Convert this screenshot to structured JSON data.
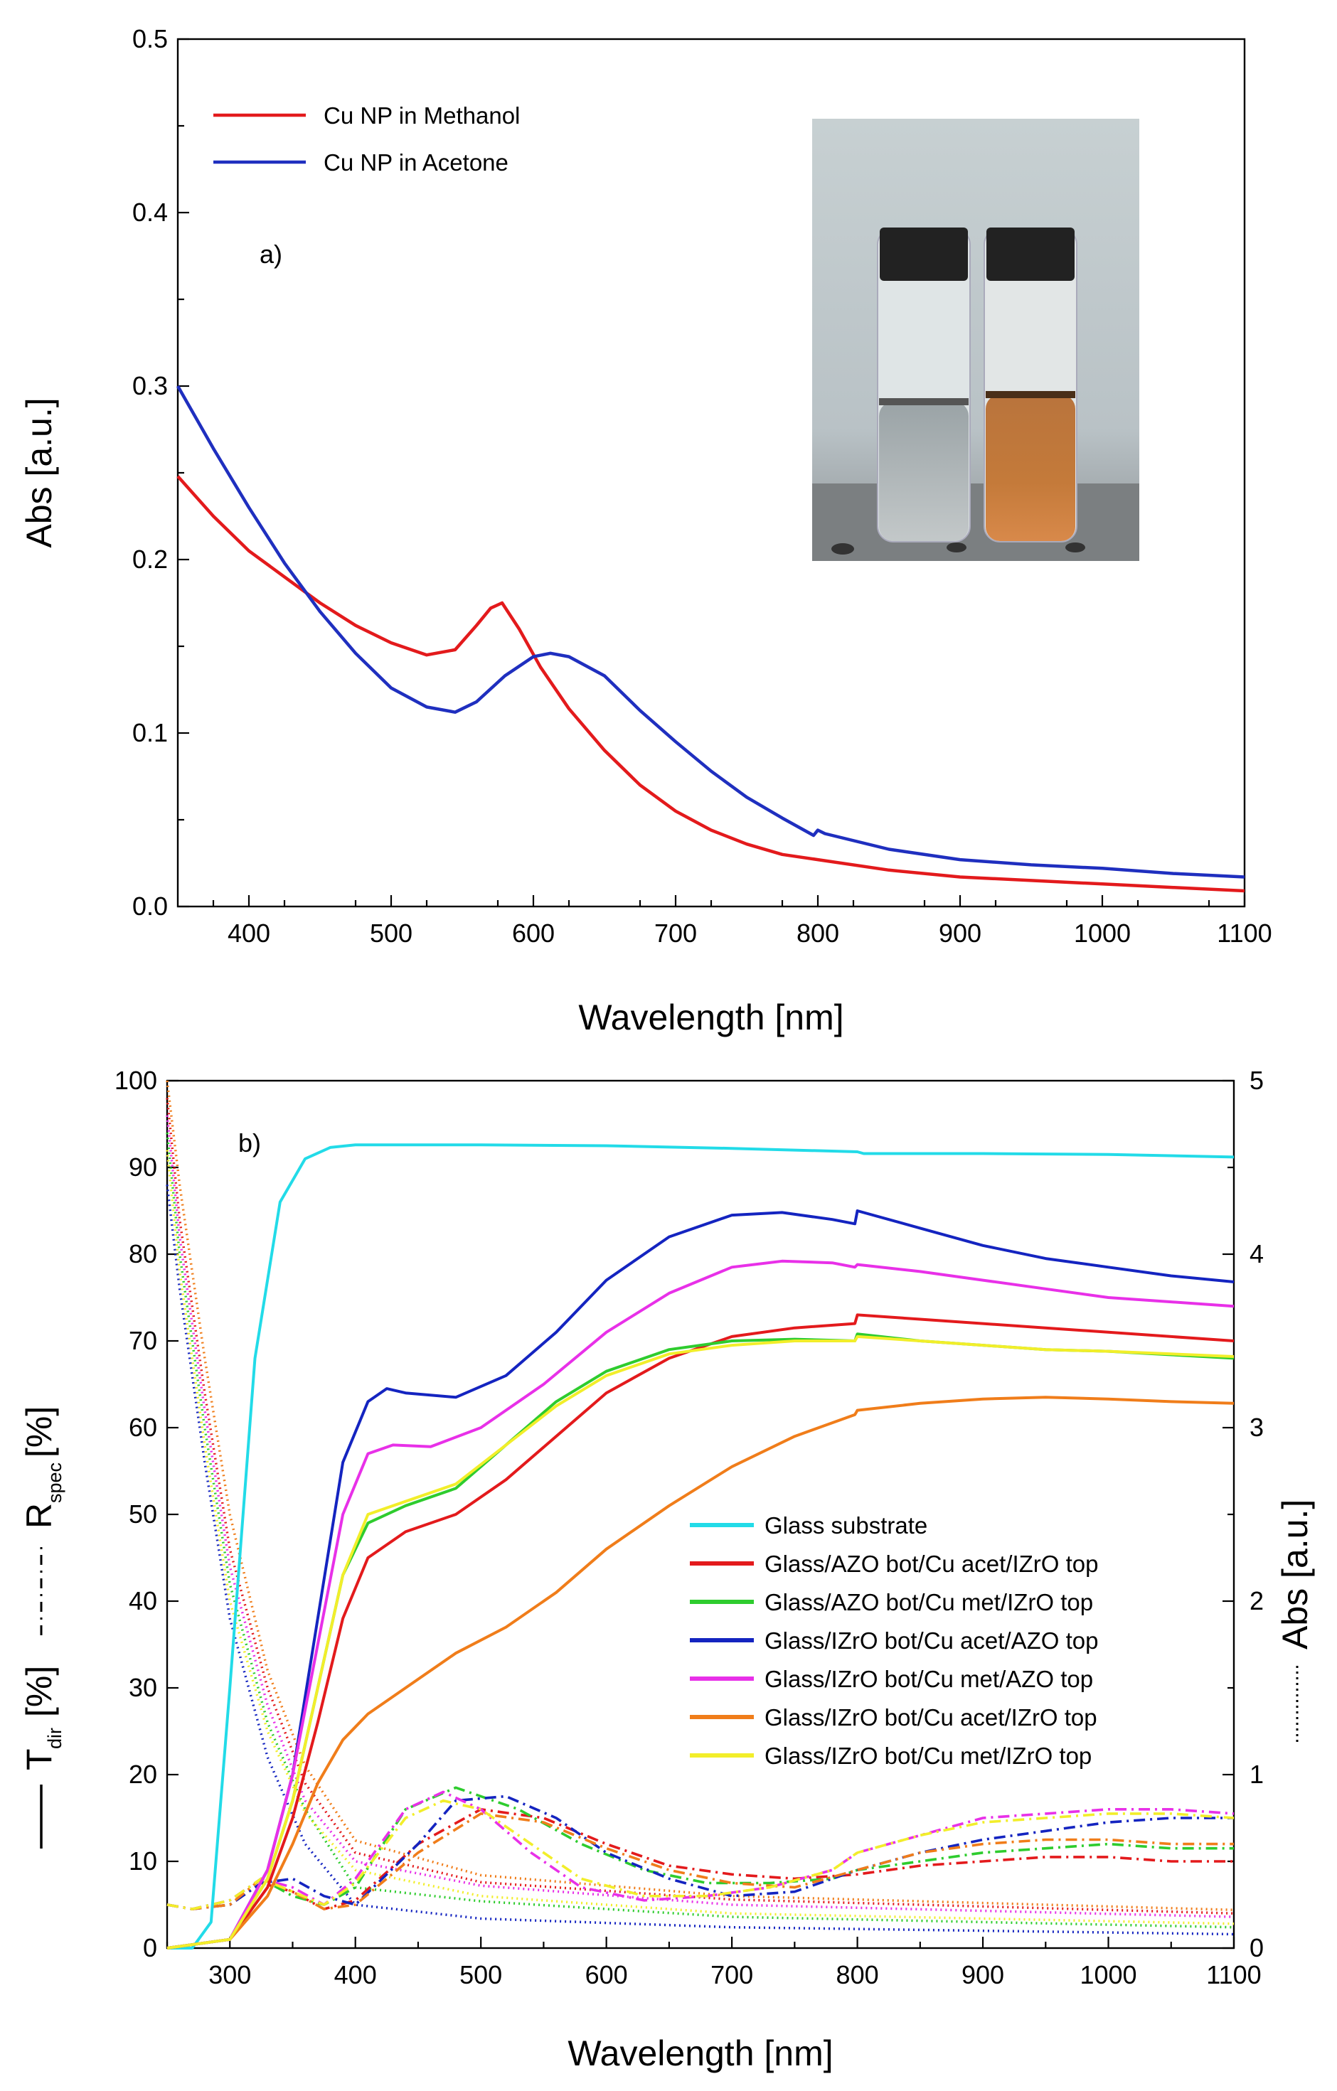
{
  "colors": {
    "red": "#e31a1c",
    "blue": "#1f2fbf",
    "cyan": "#22dbe8",
    "green": "#2ecc2e",
    "darkblue": "#1424c0",
    "magenta": "#e830e8",
    "orange": "#f07d1a",
    "yellow": "#f2ee2a",
    "black": "#000000"
  },
  "inset_photo": {
    "description": "vials",
    "icon": "vial-photo"
  },
  "chart_data": [
    {
      "type": "line",
      "panel": "a)",
      "xlabel": "Wavelength [nm]",
      "ylabel": "Abs [a.u.]",
      "xlim": [
        350,
        1100
      ],
      "ylim": [
        0.0,
        0.5
      ],
      "xticks": [
        400,
        500,
        600,
        700,
        800,
        900,
        1000,
        1100
      ],
      "yticks": [
        0.0,
        0.1,
        0.2,
        0.3,
        0.4,
        0.5
      ],
      "ytick_labels": [
        "0.0",
        "0.1",
        "0.2",
        "0.3",
        "0.4",
        "0.5"
      ],
      "legend_position": "top-left",
      "series": [
        {
          "name": "Cu NP in Methanol",
          "color": "#e31a1c",
          "x": [
            350,
            375,
            400,
            425,
            450,
            475,
            500,
            525,
            545,
            560,
            570,
            578,
            590,
            605,
            625,
            650,
            675,
            700,
            725,
            750,
            775,
            800,
            850,
            900,
            950,
            1000,
            1050,
            1100
          ],
          "y": [
            0.248,
            0.225,
            0.205,
            0.19,
            0.175,
            0.162,
            0.152,
            0.145,
            0.148,
            0.162,
            0.172,
            0.175,
            0.16,
            0.138,
            0.114,
            0.09,
            0.07,
            0.055,
            0.044,
            0.036,
            0.03,
            0.027,
            0.021,
            0.017,
            0.015,
            0.013,
            0.011,
            0.009
          ]
        },
        {
          "name": "Cu NP in Acetone",
          "color": "#1f2fbf",
          "x": [
            350,
            375,
            400,
            425,
            450,
            475,
            500,
            525,
            545,
            560,
            580,
            600,
            612,
            625,
            650,
            675,
            700,
            725,
            750,
            775,
            797,
            800,
            805,
            850,
            900,
            950,
            1000,
            1050,
            1100
          ],
          "y": [
            0.3,
            0.264,
            0.23,
            0.198,
            0.17,
            0.146,
            0.126,
            0.115,
            0.112,
            0.118,
            0.133,
            0.144,
            0.146,
            0.144,
            0.133,
            0.113,
            0.095,
            0.078,
            0.063,
            0.051,
            0.041,
            0.044,
            0.042,
            0.033,
            0.027,
            0.024,
            0.022,
            0.019,
            0.017
          ]
        }
      ]
    },
    {
      "type": "line",
      "panel": "b)",
      "xlabel": "Wavelength [nm]",
      "ylabel_left": {
        "t": "T",
        "t_sub": "dir",
        "t_unit": " [%]",
        "r": "R",
        "r_sub": "spec",
        "r_unit": " [%]"
      },
      "ylabel_right": "Abs [a.u.]",
      "xlim": [
        250,
        1100
      ],
      "ylim_left": [
        0,
        100
      ],
      "ylim_right": [
        0,
        5
      ],
      "xticks": [
        300,
        400,
        500,
        600,
        700,
        800,
        900,
        1000,
        1100
      ],
      "yticks_left": [
        0,
        10,
        20,
        30,
        40,
        50,
        60,
        70,
        80,
        90,
        100
      ],
      "yticks_right": [
        0,
        1,
        2,
        3,
        4,
        5
      ],
      "legend_position": "center-right",
      "transmittance": [
        {
          "name": "Glass substrate",
          "color": "#22dbe8",
          "x": [
            250,
            270,
            285,
            300,
            320,
            340,
            360,
            380,
            400,
            500,
            600,
            700,
            800,
            805,
            900,
            1000,
            1100
          ],
          "y": [
            0,
            0,
            3,
            30,
            68,
            86,
            91,
            92.3,
            92.6,
            92.6,
            92.5,
            92.2,
            91.8,
            91.6,
            91.6,
            91.5,
            91.2
          ]
        },
        {
          "name": "Glass/AZO bot/Cu acet/IZrO top",
          "color": "#e31a1c",
          "x": [
            250,
            300,
            330,
            350,
            370,
            390,
            410,
            440,
            480,
            520,
            560,
            600,
            650,
            700,
            750,
            798,
            800,
            850,
            900,
            950,
            1000,
            1050,
            1100
          ],
          "y": [
            0,
            1,
            7,
            15,
            26,
            38,
            45,
            48,
            50,
            54,
            59,
            64,
            68,
            70.5,
            71.5,
            72,
            73,
            72.5,
            72,
            71.5,
            71,
            70.5,
            70
          ]
        },
        {
          "name": "Glass/AZO bot/Cu met/IZrO top",
          "color": "#2ecc2e",
          "x": [
            250,
            300,
            330,
            350,
            370,
            390,
            410,
            440,
            480,
            520,
            560,
            600,
            650,
            700,
            750,
            798,
            800,
            850,
            900,
            950,
            1000,
            1050,
            1100
          ],
          "y": [
            0,
            1,
            8,
            17,
            30,
            43,
            49,
            51,
            53,
            58,
            63,
            66.5,
            69,
            70,
            70.2,
            70,
            70.8,
            70,
            69.5,
            69,
            68.8,
            68.4,
            68
          ]
        },
        {
          "name": "Glass/IZrO bot/Cu acet/AZO top",
          "color": "#1424c0",
          "x": [
            250,
            300,
            330,
            350,
            370,
            390,
            410,
            425,
            440,
            480,
            520,
            560,
            600,
            650,
            700,
            740,
            780,
            798,
            800,
            850,
            900,
            950,
            1000,
            1050,
            1100
          ],
          "y": [
            0,
            1,
            9,
            20,
            38,
            56,
            63,
            64.5,
            64,
            63.5,
            66,
            71,
            77,
            82,
            84.5,
            84.8,
            84,
            83.5,
            85,
            83,
            81,
            79.5,
            78.5,
            77.5,
            76.8
          ]
        },
        {
          "name": "Glass/IZrO bot/Cu met/AZO top",
          "color": "#e830e8",
          "x": [
            250,
            300,
            330,
            350,
            370,
            390,
            410,
            430,
            460,
            500,
            550,
            600,
            650,
            700,
            740,
            780,
            798,
            800,
            850,
            900,
            950,
            1000,
            1050,
            1100
          ],
          "y": [
            0,
            1,
            9,
            20,
            35,
            50,
            57,
            58,
            57.8,
            60,
            65,
            71,
            75.5,
            78.5,
            79.2,
            79,
            78.5,
            78.8,
            78,
            77,
            76,
            75,
            74.5,
            74
          ]
        },
        {
          "name": "Glass/IZrO bot/Cu acet/IZrO top",
          "color": "#f07d1a",
          "x": [
            250,
            300,
            330,
            350,
            370,
            390,
            410,
            440,
            480,
            520,
            560,
            600,
            650,
            700,
            750,
            798,
            800,
            850,
            900,
            950,
            1000,
            1050,
            1100
          ],
          "y": [
            0,
            1,
            6,
            12,
            19,
            24,
            27,
            30,
            34,
            37,
            41,
            46,
            51,
            55.5,
            59,
            61.5,
            62,
            62.8,
            63.3,
            63.5,
            63.3,
            63,
            62.8
          ]
        },
        {
          "name": "Glass/IZrO bot/Cu met/IZrO top",
          "color": "#f2ee2a",
          "x": [
            250,
            300,
            330,
            350,
            370,
            390,
            410,
            440,
            480,
            520,
            560,
            600,
            650,
            700,
            750,
            798,
            800,
            850,
            900,
            950,
            1000,
            1050,
            1100
          ],
          "y": [
            0,
            1,
            8,
            17,
            30,
            43,
            50,
            51.5,
            53.5,
            58,
            62.5,
            66,
            68.5,
            69.5,
            70,
            70,
            70.5,
            70,
            69.5,
            69,
            68.8,
            68.5,
            68.2
          ]
        }
      ],
      "reflectance": [
        {
          "name": "Glass/AZO bot/Cu acet/IZrO top",
          "color": "#e31a1c",
          "x": [
            250,
            270,
            300,
            325,
            350,
            375,
            400,
            450,
            500,
            550,
            600,
            650,
            700,
            750,
            800,
            850,
            900,
            950,
            1000,
            1050,
            1100
          ],
          "y": [
            5,
            4.5,
            5,
            7.5,
            6.5,
            4.5,
            5.5,
            12,
            16,
            15,
            12,
            9.5,
            8.5,
            8,
            8.5,
            9.5,
            10,
            10.5,
            10.5,
            10,
            10
          ]
        },
        {
          "name": "Glass/AZO bot/Cu met/IZrO top",
          "color": "#2ecc2e",
          "x": [
            250,
            270,
            300,
            325,
            350,
            375,
            400,
            440,
            480,
            530,
            580,
            630,
            680,
            730,
            780,
            800,
            850,
            900,
            950,
            1000,
            1050,
            1100
          ],
          "y": [
            5,
            4.5,
            5.5,
            8,
            6,
            5,
            7,
            16,
            18.5,
            16,
            12,
            9,
            7.5,
            7.5,
            8,
            9,
            10,
            11,
            11.5,
            12,
            11.5,
            11.5
          ]
        },
        {
          "name": "Glass/IZrO bot/Cu acet/AZO top",
          "color": "#1424c0",
          "x": [
            250,
            270,
            300,
            325,
            350,
            375,
            400,
            450,
            480,
            520,
            560,
            600,
            650,
            700,
            750,
            800,
            850,
            900,
            950,
            1000,
            1050,
            1100
          ],
          "y": [
            5,
            4.5,
            5,
            7.5,
            8,
            6,
            5,
            12,
            17,
            17.5,
            15,
            11,
            8,
            6,
            6.5,
            9,
            11,
            12.5,
            13.5,
            14.5,
            15,
            15
          ]
        },
        {
          "name": "Glass/IZrO bot/Cu met/AZO top",
          "color": "#e830e8",
          "x": [
            250,
            270,
            300,
            325,
            350,
            375,
            400,
            440,
            470,
            500,
            540,
            580,
            630,
            680,
            730,
            780,
            800,
            850,
            900,
            950,
            1000,
            1050,
            1100
          ],
          "y": [
            5,
            4.5,
            5.5,
            8,
            7,
            5,
            8,
            16,
            18,
            16,
            11,
            7,
            5.5,
            6,
            7,
            9,
            11,
            13,
            15,
            15.5,
            16,
            16,
            15.5
          ]
        },
        {
          "name": "Glass/IZrO bot/Cu acet/IZrO top",
          "color": "#f07d1a",
          "x": [
            250,
            270,
            300,
            325,
            350,
            375,
            400,
            450,
            500,
            550,
            600,
            650,
            700,
            750,
            800,
            850,
            900,
            950,
            1000,
            1050,
            1100
          ],
          "y": [
            5,
            4.5,
            5,
            8,
            6.5,
            4.5,
            5,
            11,
            15.5,
            14.5,
            11.5,
            9,
            7.5,
            7,
            9,
            11,
            12,
            12.5,
            12.5,
            12,
            12
          ]
        },
        {
          "name": "Glass/IZrO bot/Cu met/IZrO top",
          "color": "#f2ee2a",
          "x": [
            250,
            270,
            300,
            325,
            350,
            375,
            400,
            440,
            470,
            500,
            540,
            580,
            630,
            680,
            730,
            780,
            800,
            850,
            900,
            950,
            1000,
            1050,
            1100
          ],
          "y": [
            5,
            4.5,
            5.5,
            8,
            6.5,
            5,
            7.5,
            15,
            17,
            16,
            12,
            8,
            6,
            6,
            7,
            9,
            11,
            13,
            14.5,
            15,
            15.5,
            15.5,
            15
          ]
        }
      ],
      "absorbance": [
        {
          "name": "Glass/AZO bot/Cu acet/IZrO top",
          "color": "#e31a1c",
          "x": [
            250,
            260,
            280,
            300,
            330,
            360,
            400,
            500,
            700,
            1100
          ],
          "y": [
            4.9,
            4.2,
            3.2,
            2.3,
            1.5,
            0.95,
            0.55,
            0.38,
            0.28,
            0.2
          ]
        },
        {
          "name": "Glass/AZO bot/Cu met/IZrO top",
          "color": "#2ecc2e",
          "x": [
            250,
            260,
            280,
            300,
            330,
            360,
            400,
            500,
            700,
            1100
          ],
          "y": [
            4.7,
            4.0,
            3.0,
            2.1,
            1.3,
            0.8,
            0.35,
            0.27,
            0.18,
            0.12
          ]
        },
        {
          "name": "Glass/IZrO bot/Cu acet/AZO top",
          "color": "#1424c0",
          "x": [
            250,
            260,
            280,
            300,
            330,
            360,
            400,
            500,
            700,
            1100
          ],
          "y": [
            4.4,
            3.8,
            2.8,
            1.9,
            1.1,
            0.6,
            0.25,
            0.17,
            0.12,
            0.08
          ]
        },
        {
          "name": "Glass/IZrO bot/Cu met/AZO top",
          "color": "#e830e8",
          "x": [
            250,
            260,
            280,
            300,
            330,
            360,
            400,
            500,
            700,
            1100
          ],
          "y": [
            4.8,
            4.1,
            3.1,
            2.2,
            1.4,
            0.85,
            0.5,
            0.36,
            0.25,
            0.18
          ]
        },
        {
          "name": "Glass/IZrO bot/Cu acet/IZrO top",
          "color": "#f07d1a",
          "x": [
            250,
            260,
            280,
            300,
            330,
            360,
            400,
            500,
            700,
            1100
          ],
          "y": [
            5.0,
            4.4,
            3.4,
            2.5,
            1.6,
            1.05,
            0.62,
            0.42,
            0.3,
            0.22
          ]
        },
        {
          "name": "Glass/IZrO bot/Cu met/IZrO top",
          "color": "#f2ee2a",
          "x": [
            250,
            260,
            280,
            300,
            330,
            360,
            400,
            500,
            700,
            1100
          ],
          "y": [
            4.6,
            3.9,
            2.9,
            2.0,
            1.25,
            0.78,
            0.45,
            0.3,
            0.2,
            0.14
          ]
        }
      ],
      "legend_entries": [
        "Glass substrate",
        "Glass/AZO bot/Cu acet/IZrO top",
        "Glass/AZO bot/Cu met/IZrO top",
        "Glass/IZrO bot/Cu acet/AZO top",
        "Glass/IZrO bot/Cu met/AZO top",
        "Glass/IZrO bot/Cu acet/IZrO top",
        "Glass/IZrO bot/Cu met/IZrO top"
      ]
    }
  ]
}
